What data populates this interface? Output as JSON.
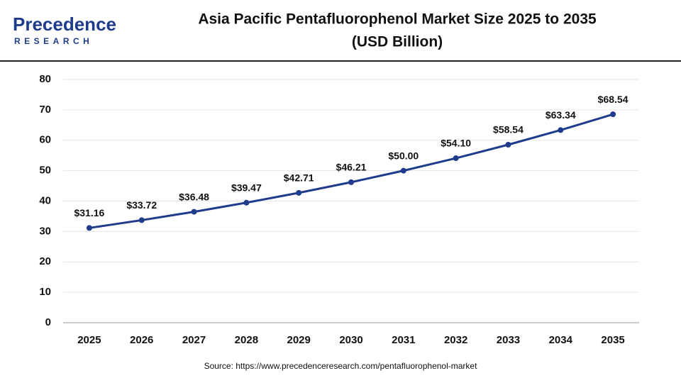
{
  "logo": {
    "name": "Precedence",
    "tagline": "RESEARCH"
  },
  "chart_data": {
    "type": "line",
    "title": "Asia Pacific Pentafluorophenol Market Size 2025 to 2035",
    "subtitle": "(USD Billion)",
    "categories": [
      "2025",
      "2026",
      "2027",
      "2028",
      "2029",
      "2030",
      "2031",
      "2032",
      "2033",
      "2034",
      "2035"
    ],
    "values": [
      31.16,
      33.72,
      36.48,
      39.47,
      42.71,
      46.21,
      50.0,
      54.1,
      58.54,
      63.34,
      68.54
    ],
    "value_labels": [
      "$31.16",
      "$33.72",
      "$36.48",
      "$39.47",
      "$42.71",
      "$46.21",
      "$50.00",
      "$54.10",
      "$58.54",
      "$63.34",
      "$68.54"
    ],
    "color": "#1f3c8c",
    "ylim": [
      0,
      80
    ],
    "yticks": [
      0,
      10,
      20,
      30,
      40,
      50,
      60,
      70,
      80
    ],
    "grid": true,
    "source": "Source: https://www.precedenceresearch.com/pentafluorophenol-market"
  }
}
